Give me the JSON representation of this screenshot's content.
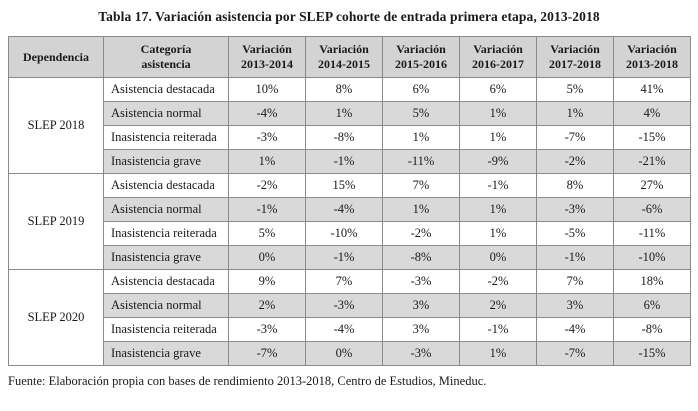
{
  "title": "Tabla 17. Variación asistencia por SLEP cohorte de entrada primera etapa, 2013-2018",
  "footer": "Fuente: Elaboración propia con bases de rendimiento 2013-2018, Centro de Estudios, Mineduc.",
  "colors": {
    "header_bg": "#d3d3d3",
    "row_stripe": "#d9d9d9",
    "border": "#8a8a8a",
    "text": "#1a1a1a"
  },
  "chart_data": {
    "type": "table",
    "title": "Tabla 17. Variación asistencia por SLEP cohorte de entrada primera etapa, 2013-2018",
    "source": "Fuente: Elaboración propia con bases de rendimiento 2013-2018, Centro de Estudios, Mineduc."
  },
  "table": {
    "headers": [
      [
        "Dependencia"
      ],
      [
        "Categoría",
        "asistencia"
      ],
      [
        "Variación",
        "2013-2014"
      ],
      [
        "Variación",
        "2014-2015"
      ],
      [
        "Variación",
        "2015-2016"
      ],
      [
        "Variación",
        "2016-2017"
      ],
      [
        "Variación",
        "2017-2018"
      ],
      [
        "Variación",
        "2013-2018"
      ]
    ],
    "groups": [
      {
        "dependencia": "SLEP 2018",
        "rows": [
          {
            "categoria": "Asistencia destacada",
            "values": [
              "10%",
              "8%",
              "6%",
              "6%",
              "5%",
              "41%"
            ]
          },
          {
            "categoria": "Asistencia normal",
            "values": [
              "-4%",
              "1%",
              "5%",
              "1%",
              "1%",
              "4%"
            ]
          },
          {
            "categoria": "Inasistencia reiterada",
            "values": [
              "-3%",
              "-8%",
              "1%",
              "1%",
              "-7%",
              "-15%"
            ]
          },
          {
            "categoria": "Inasistencia grave",
            "values": [
              "1%",
              "-1%",
              "-11%",
              "-9%",
              "-2%",
              "-21%"
            ]
          }
        ]
      },
      {
        "dependencia": "SLEP 2019",
        "rows": [
          {
            "categoria": "Asistencia destacada",
            "values": [
              "-2%",
              "15%",
              "7%",
              "-1%",
              "8%",
              "27%"
            ]
          },
          {
            "categoria": "Asistencia normal",
            "values": [
              "-1%",
              "-4%",
              "1%",
              "1%",
              "-3%",
              "-6%"
            ]
          },
          {
            "categoria": "Inasistencia reiterada",
            "values": [
              "5%",
              "-10%",
              "-2%",
              "1%",
              "-5%",
              "-11%"
            ]
          },
          {
            "categoria": "Inasistencia grave",
            "values": [
              "0%",
              "-1%",
              "-8%",
              "0%",
              "-1%",
              "-10%"
            ]
          }
        ]
      },
      {
        "dependencia": "SLEP 2020",
        "rows": [
          {
            "categoria": "Asistencia destacada",
            "values": [
              "9%",
              "7%",
              "-3%",
              "-2%",
              "7%",
              "18%"
            ]
          },
          {
            "categoria": "Asistencia normal",
            "values": [
              "2%",
              "-3%",
              "3%",
              "2%",
              "3%",
              "6%"
            ]
          },
          {
            "categoria": "Inasistencia reiterada",
            "values": [
              "-3%",
              "-4%",
              "3%",
              "-1%",
              "-4%",
              "-8%"
            ]
          },
          {
            "categoria": "Inasistencia grave",
            "values": [
              "-7%",
              "0%",
              "-3%",
              "1%",
              "-7%",
              "-15%"
            ]
          }
        ]
      }
    ]
  }
}
